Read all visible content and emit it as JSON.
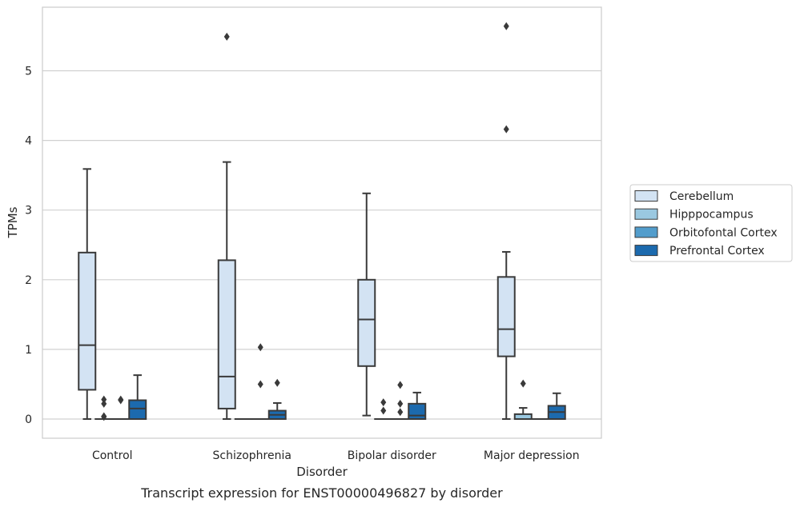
{
  "chart_data": {
    "type": "box",
    "title": "",
    "caption": "Transcript expression for ENST00000496827 by disorder",
    "xlabel": "Disorder",
    "ylabel": "TPMs",
    "ylim": [
      -0.28,
      5.95
    ],
    "yticks": [
      0,
      1,
      2,
      3,
      4,
      5
    ],
    "grid": "horizontal",
    "legend_position": "right",
    "categories": [
      "Control",
      "Schizophrenia",
      "Bipolar disorder",
      "Major depression"
    ],
    "series": [
      {
        "name": "Cerebellum",
        "color": "#d3e3f3",
        "boxes": [
          {
            "whisker_low": 0.0,
            "q1": 0.42,
            "median": 1.06,
            "q3": 2.39,
            "whisker_high": 3.59,
            "outliers": []
          },
          {
            "whisker_low": 0.0,
            "q1": 0.15,
            "median": 0.61,
            "q3": 2.28,
            "whisker_high": 3.69,
            "outliers": [
              5.49
            ]
          },
          {
            "whisker_low": 0.05,
            "q1": 0.76,
            "median": 1.43,
            "q3": 2.0,
            "whisker_high": 3.24,
            "outliers": []
          },
          {
            "whisker_low": 0.0,
            "q1": 0.9,
            "median": 1.29,
            "q3": 2.04,
            "whisker_high": 2.4,
            "outliers": [
              4.16,
              5.64
            ]
          }
        ]
      },
      {
        "name": "Hipppocampus",
        "color": "#9ac8e0",
        "boxes": [
          {
            "whisker_low": 0.0,
            "q1": 0.0,
            "median": 0.0,
            "q3": 0.0,
            "whisker_high": 0.0,
            "outliers": [
              0.03,
              0.04,
              0.22,
              0.28
            ]
          },
          {
            "whisker_low": 0.0,
            "q1": 0.0,
            "median": 0.0,
            "q3": 0.0,
            "whisker_high": 0.0,
            "outliers": []
          },
          {
            "whisker_low": 0.0,
            "q1": 0.0,
            "median": 0.0,
            "q3": 0.0,
            "whisker_high": 0.0,
            "outliers": [
              0.12,
              0.24
            ]
          },
          {
            "whisker_low": 0.0,
            "q1": 0.0,
            "median": 0.0,
            "q3": 0.07,
            "whisker_high": 0.16,
            "outliers": [
              0.51
            ]
          }
        ]
      },
      {
        "name": "Orbitofontal Cortex",
        "color": "#529dcc",
        "boxes": [
          {
            "whisker_low": 0.0,
            "q1": 0.0,
            "median": 0.0,
            "q3": 0.0,
            "whisker_high": 0.0,
            "outliers": [
              0.27,
              0.28
            ]
          },
          {
            "whisker_low": 0.0,
            "q1": 0.0,
            "median": 0.0,
            "q3": 0.0,
            "whisker_high": 0.0,
            "outliers": [
              0.5,
              1.03
            ]
          },
          {
            "whisker_low": 0.0,
            "q1": 0.0,
            "median": 0.0,
            "q3": 0.0,
            "whisker_high": 0.0,
            "outliers": [
              0.1,
              0.22,
              0.49
            ]
          },
          {
            "whisker_low": 0.0,
            "q1": 0.0,
            "median": 0.0,
            "q3": 0.0,
            "whisker_high": 0.0,
            "outliers": []
          }
        ]
      },
      {
        "name": "Prefrontal Cortex",
        "color": "#1c6aae",
        "boxes": [
          {
            "whisker_low": 0.0,
            "q1": 0.0,
            "median": 0.15,
            "q3": 0.27,
            "whisker_high": 0.63,
            "outliers": []
          },
          {
            "whisker_low": 0.0,
            "q1": 0.0,
            "median": 0.06,
            "q3": 0.12,
            "whisker_high": 0.23,
            "outliers": [
              0.52
            ]
          },
          {
            "whisker_low": 0.0,
            "q1": 0.0,
            "median": 0.05,
            "q3": 0.22,
            "whisker_high": 0.38,
            "outliers": []
          },
          {
            "whisker_low": 0.0,
            "q1": 0.0,
            "median": 0.1,
            "q3": 0.19,
            "whisker_high": 0.37,
            "outliers": []
          }
        ]
      }
    ]
  }
}
